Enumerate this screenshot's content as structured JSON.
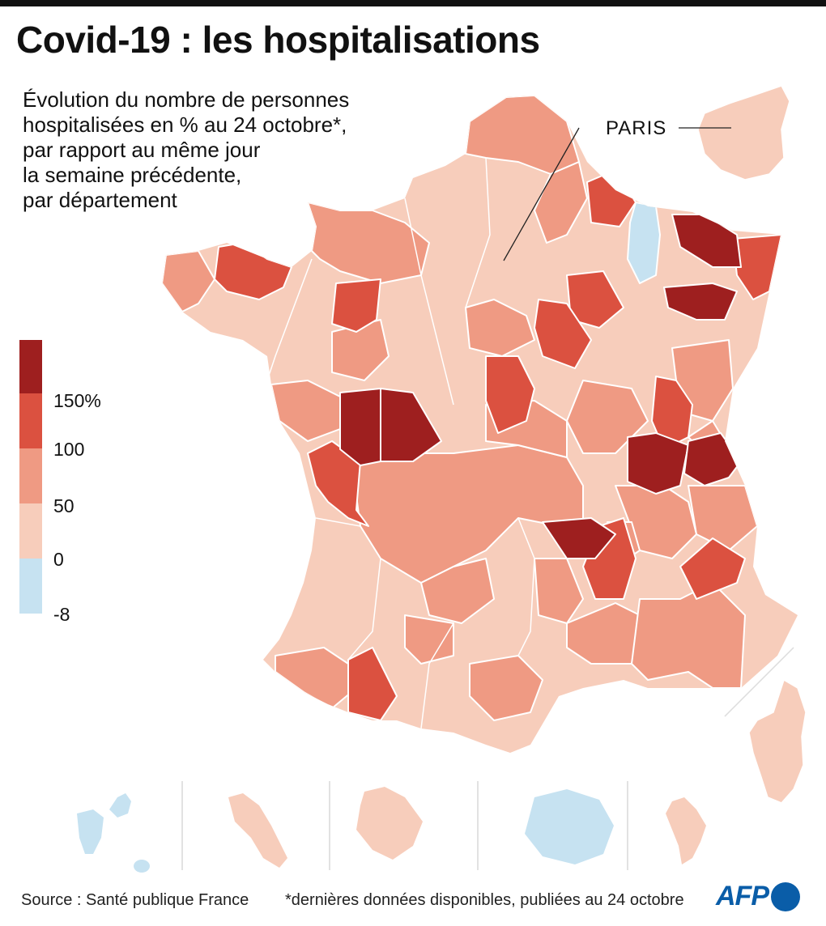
{
  "header": {
    "title": "Covid-19 : les hospitalisations",
    "subtitle_lines": [
      "Évolution du nombre de personnes",
      "hospitalisées en % au 24 octobre*,",
      "par rapport au même jour",
      "la semaine précédente,",
      "par département"
    ]
  },
  "map": {
    "paris_label": "PARIS",
    "department_colors": {
      "blue": "#c6e2f1",
      "class_0_50": "#f7cdbb",
      "class_50_100": "#ef9a83",
      "class_100_150": "#db5140",
      "class_150_plus": "#9e1f1f"
    }
  },
  "legend": {
    "classes": [
      {
        "color": "#9e1f1f",
        "range": "≥150%"
      },
      {
        "color": "#db5140",
        "range": "100–150%"
      },
      {
        "color": "#ef9a83",
        "range": "50–100%"
      },
      {
        "color": "#f7cdbb",
        "range": "0–50%"
      },
      {
        "color": "#c6e2f1",
        "range": "-8–0%"
      }
    ],
    "labels": [
      "150%",
      "100",
      "50",
      "0",
      "-8"
    ]
  },
  "footer": {
    "source": "Source : Santé publique France",
    "note": "*dernières données disponibles, publiées au 24 octobre",
    "logo_text": "AFP"
  }
}
